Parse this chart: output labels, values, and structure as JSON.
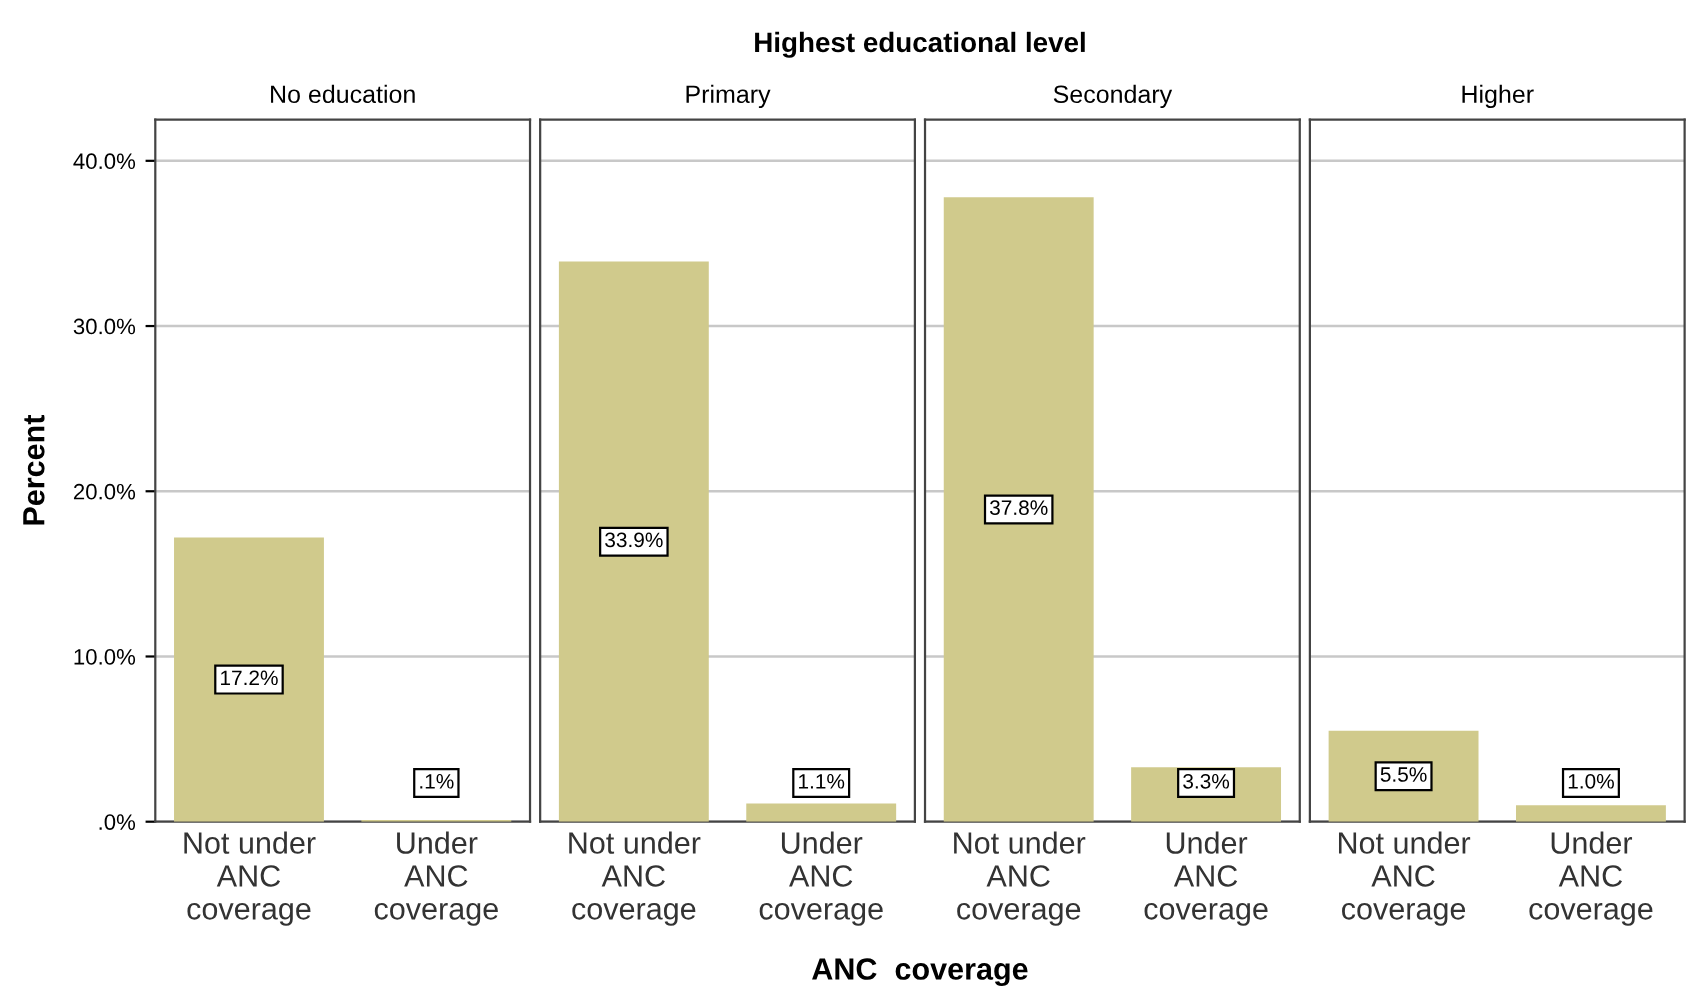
{
  "chart_data": [
    {
      "type": "bar",
      "title": "No education",
      "ylabel": "Percent",
      "annotations": [
        "Highest educational level",
        "ANC  coverage"
      ],
      "categories": [
        "Not under\nANC\ncoverage",
        "Under\nANC\ncoverage"
      ],
      "values": [
        17.2,
        0.1
      ],
      "value_labels": [
        "17.2%",
        ".1%"
      ],
      "color": "#d0ca8c",
      "ylim": [
        0,
        42.5
      ],
      "yticks": [
        {
          "value": 0,
          "label": ".0%"
        },
        {
          "value": 10,
          "label": "10.0%"
        },
        {
          "value": 20,
          "label": "20.0%"
        },
        {
          "value": 30,
          "label": "30.0%"
        },
        {
          "value": 40,
          "label": "40.0%"
        }
      ],
      "grid": "y"
    },
    {
      "type": "bar",
      "title": "Primary",
      "categories": [
        "Not under\nANC\ncoverage",
        "Under\nANC\ncoverage"
      ],
      "values": [
        33.9,
        1.1
      ],
      "value_labels": [
        "33.9%",
        "1.1%"
      ],
      "color": "#d0ca8c",
      "ylim": [
        0,
        42.5
      ],
      "yticks": [
        0,
        10,
        20,
        30,
        40
      ],
      "grid": "y",
      "tick_labels": "x"
    },
    {
      "type": "bar",
      "title": "Secondary",
      "categories": [
        "Not under\nANC\ncoverage",
        "Under\nANC\ncoverage"
      ],
      "values": [
        37.8,
        3.3
      ],
      "value_labels": [
        "37.8%",
        "3.3%"
      ],
      "color": "#d0ca8c",
      "ylim": [
        0,
        42.5
      ],
      "yticks": [
        0,
        10,
        20,
        30,
        40
      ],
      "grid": "y",
      "tick_labels": "x"
    },
    {
      "type": "bar",
      "title": "Higher",
      "categories": [
        "Not under\nANC\ncoverage",
        "Under\nANC\ncoverage"
      ],
      "values": [
        5.5,
        1.0
      ],
      "value_labels": [
        "5.5%",
        "1.0%"
      ],
      "color": "#d0ca8c",
      "ylim": [
        0,
        42.5
      ],
      "yticks": [
        0,
        10,
        20,
        30,
        40
      ],
      "grid": "y",
      "tick_labels": "x"
    }
  ]
}
